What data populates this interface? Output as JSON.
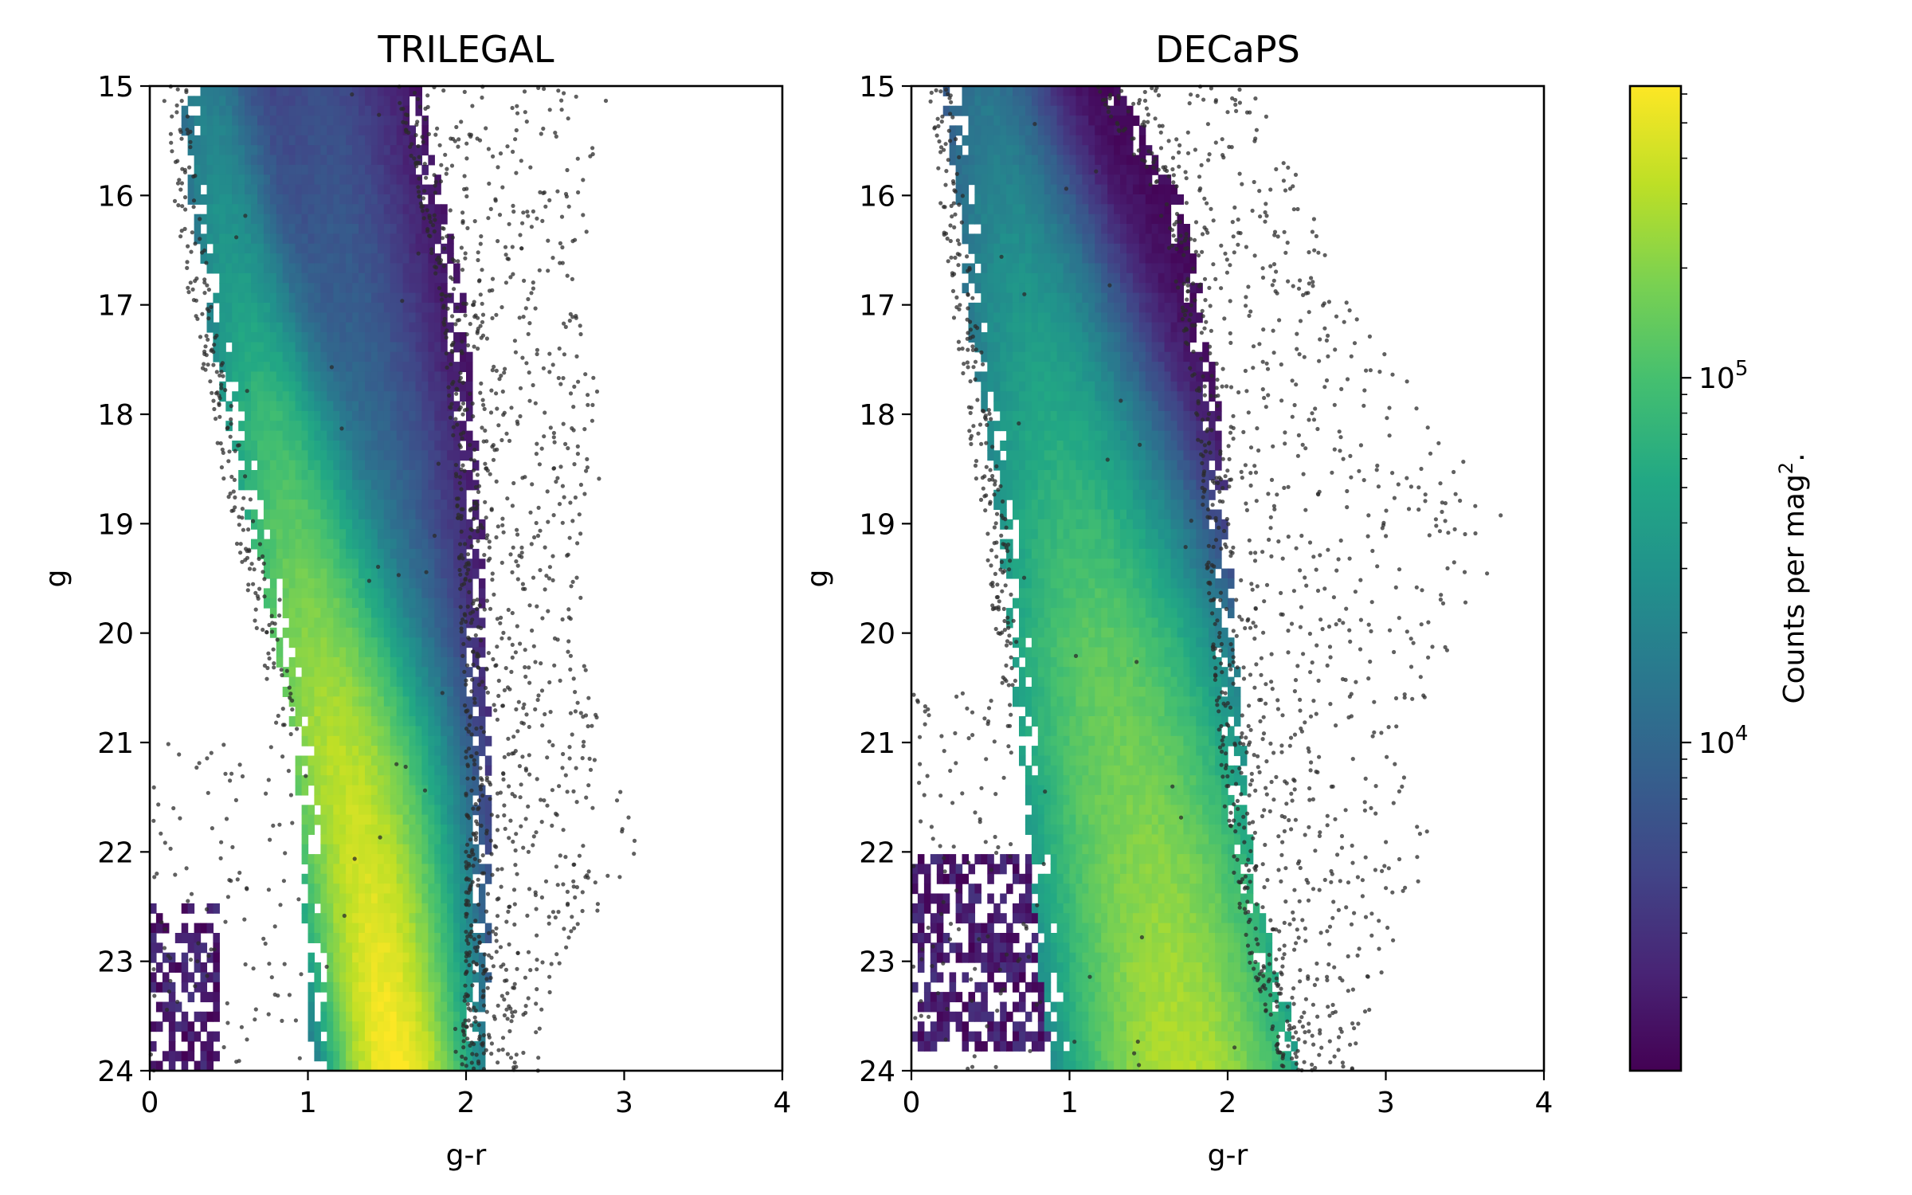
{
  "chart_data": [
    {
      "type": "heatmap",
      "title": "TRILEGAL",
      "xlabel": "g-r",
      "ylabel": "g",
      "xlim": [
        0,
        4
      ],
      "ylim": [
        24,
        15
      ],
      "y_inverted": true,
      "xticks": [
        "0",
        "1",
        "2",
        "3",
        "4"
      ],
      "yticks": [
        "15",
        "16",
        "17",
        "18",
        "19",
        "20",
        "21",
        "22",
        "23",
        "24"
      ],
      "ridges": [
        {
          "name": "main",
          "g": [
            15,
            16,
            17,
            18,
            19,
            20,
            21,
            22,
            23,
            24
          ],
          "color_center": [
            0.35,
            0.45,
            0.6,
            0.75,
            0.9,
            1.05,
            1.2,
            1.35,
            1.45,
            1.55
          ],
          "width": [
            0.17,
            0.18,
            0.19,
            0.21,
            0.23,
            0.25,
            0.25,
            0.22,
            0.2,
            0.18
          ],
          "peak_log10_counts": [
            4.2,
            4.4,
            4.6,
            4.9,
            5.1,
            5.3,
            5.5,
            5.6,
            5.7,
            5.8
          ]
        },
        {
          "name": "red",
          "g": [
            15,
            16,
            17,
            18,
            19,
            20,
            21,
            22,
            23,
            24
          ],
          "color_center": [
            1.05,
            1.15,
            1.25,
            1.35,
            1.45,
            1.55,
            1.65,
            1.72,
            1.78,
            1.82
          ],
          "width": [
            0.28,
            0.28,
            0.28,
            0.28,
            0.26,
            0.24,
            0.22,
            0.2,
            0.18,
            0.17
          ],
          "peak_log10_counts": [
            3.6,
            3.7,
            3.8,
            3.9,
            4.0,
            4.1,
            4.3,
            4.5,
            4.6,
            4.7
          ]
        }
      ],
      "density_edges": {
        "g": [
          15,
          16,
          17,
          18,
          19,
          20,
          21,
          22,
          23,
          24
        ],
        "blue_edge": [
          0.18,
          0.25,
          0.35,
          0.48,
          0.62,
          0.78,
          0.92,
          0.96,
          0.99,
          1.02
        ],
        "red_edge": [
          1.7,
          1.85,
          2.0,
          2.05,
          2.1,
          2.12,
          2.15,
          2.15,
          2.15,
          2.12
        ]
      },
      "blue_clump": {
        "g_range": [
          22.5,
          24
        ],
        "color_range": [
          0.0,
          0.45
        ]
      },
      "scatter_envelope": {
        "g": [
          15,
          16,
          17,
          18,
          19,
          20,
          21,
          22,
          23,
          24
        ],
        "max_color": [
          2.9,
          2.8,
          2.7,
          2.9,
          2.8,
          2.7,
          2.9,
          3.1,
          2.6,
          2.5
        ]
      }
    },
    {
      "type": "heatmap",
      "title": "DECaPS",
      "xlabel": "g-r",
      "ylabel": "g",
      "xlim": [
        0,
        4
      ],
      "ylim": [
        24,
        15
      ],
      "y_inverted": true,
      "xticks": [
        "0",
        "1",
        "2",
        "3",
        "4"
      ],
      "yticks": [
        "15",
        "16",
        "17",
        "18",
        "19",
        "20",
        "21",
        "22",
        "23",
        "24"
      ],
      "ridges": [
        {
          "name": "main",
          "g": [
            15,
            16,
            17,
            18,
            19,
            20,
            21,
            22,
            23,
            24
          ],
          "color_center": [
            0.45,
            0.6,
            0.75,
            0.9,
            1.05,
            1.2,
            1.35,
            1.5,
            1.62,
            1.72
          ],
          "width": [
            0.22,
            0.26,
            0.3,
            0.33,
            0.36,
            0.38,
            0.4,
            0.4,
            0.38,
            0.36
          ],
          "peak_log10_counts": [
            4.1,
            4.3,
            4.5,
            4.7,
            4.9,
            5.1,
            5.2,
            5.3,
            5.4,
            5.5
          ]
        }
      ],
      "density_edges": {
        "g": [
          15,
          16,
          17,
          18,
          19,
          20,
          21,
          22,
          23,
          24
        ],
        "blue_edge": [
          0.2,
          0.28,
          0.35,
          0.45,
          0.55,
          0.62,
          0.68,
          0.75,
          0.8,
          0.9
        ],
        "red_edge": [
          1.3,
          1.7,
          1.85,
          1.95,
          2.0,
          2.05,
          2.1,
          2.15,
          2.3,
          2.5
        ]
      },
      "blue_clump": {
        "g_range": [
          22.0,
          23.8
        ],
        "color_range": [
          0.0,
          0.9
        ]
      },
      "scatter_envelope": {
        "g": [
          15,
          16,
          17,
          18,
          19,
          20,
          21,
          22,
          23,
          24
        ],
        "max_color": [
          2.2,
          2.5,
          2.8,
          3.3,
          3.8,
          3.5,
          3.1,
          3.3,
          3.0,
          2.8
        ]
      }
    }
  ],
  "colorbar": {
    "label": "Counts per mag$^2$.",
    "label_text": "Counts per mag",
    "label_sup": "2",
    "label_tail": ".",
    "scale": "log",
    "colormap": "viridis",
    "range_log10": [
      3.1,
      5.8
    ],
    "ticks": [
      {
        "base": "10",
        "exp": "4",
        "log10": 4
      },
      {
        "base": "10",
        "exp": "5",
        "log10": 5
      }
    ]
  },
  "colors": {
    "scatter_points": "#2b2b2b",
    "viridis_low": "#440154",
    "viridis_mid": "#21918c",
    "viridis_high": "#fde725"
  }
}
